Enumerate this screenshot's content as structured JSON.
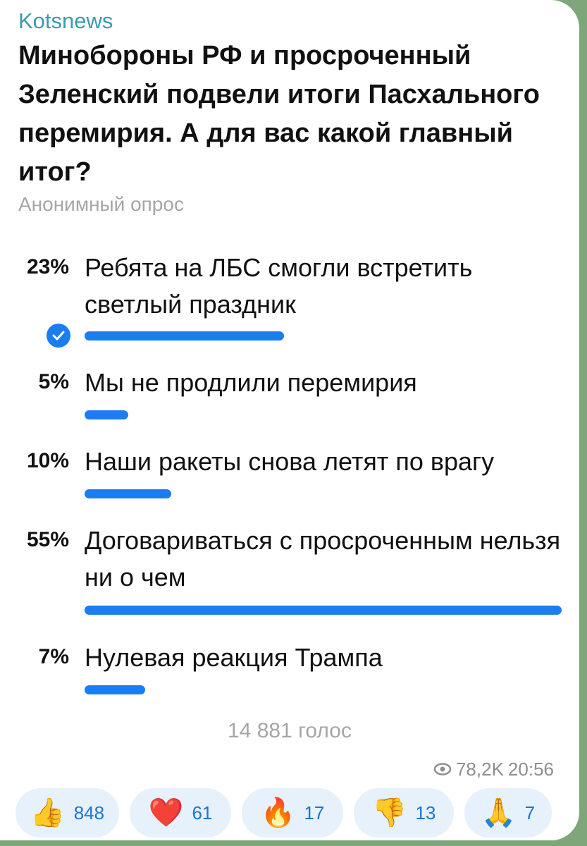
{
  "channel": "Kotsnews",
  "title": "Минобороны РФ и просроченный Зеленский подвели итоги Пасхального перемирия. А для вас какой главный итог?",
  "poll_type": "Анонимный опрос",
  "accent_color": "#1b7df0",
  "options": [
    {
      "percent_label": "23%",
      "percent": 23,
      "text": "Ребята на ЛБС смогли встретить светлый праздник",
      "selected": true
    },
    {
      "percent_label": "5%",
      "percent": 5,
      "text": "Мы не продлили перемирия",
      "selected": false
    },
    {
      "percent_label": "10%",
      "percent": 10,
      "text": "Наши ракеты снова летят по врагу",
      "selected": false
    },
    {
      "percent_label": "55%",
      "percent": 55,
      "text": "Договариваться с просроченным нельзя ни о чем",
      "selected": false
    },
    {
      "percent_label": "7%",
      "percent": 7,
      "text": "Нулевая реакция Трампа",
      "selected": false
    }
  ],
  "total_votes": "14 881 голос",
  "views": "78,2K",
  "time": "20:56",
  "reactions": [
    {
      "icon": "thumbs-up-icon",
      "emoji": "👍",
      "count": "848"
    },
    {
      "icon": "heart-icon",
      "emoji": "❤️",
      "count": "61"
    },
    {
      "icon": "fire-icon",
      "emoji": "🔥",
      "count": "17"
    },
    {
      "icon": "thumbs-down-icon",
      "emoji": "👎",
      "count": "13"
    },
    {
      "icon": "pray-icon",
      "emoji": "🙏",
      "count": "7"
    }
  ]
}
